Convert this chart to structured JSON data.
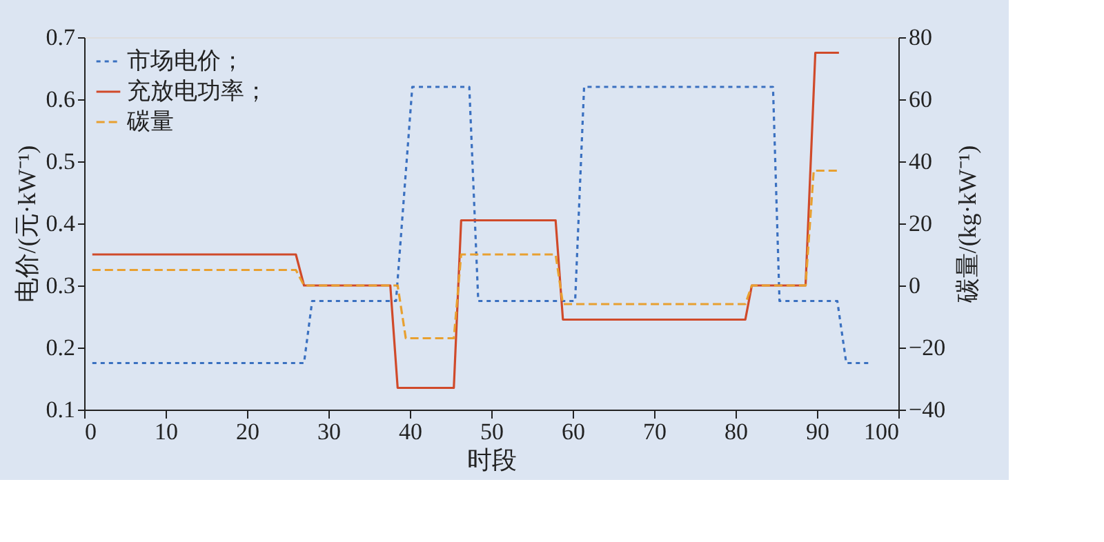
{
  "chart_data": {
    "type": "line",
    "xlabel": "时段",
    "ylabel": "电价/(元·kW⁻¹)",
    "y2label": "碳量/(kg·kW⁻¹)",
    "xlim": [
      0,
      100
    ],
    "xticks": [
      0,
      10,
      20,
      30,
      40,
      50,
      60,
      70,
      80,
      90,
      100
    ],
    "ylim": [
      0.1,
      0.7
    ],
    "yticks": [
      0.1,
      0.2,
      0.3,
      0.4,
      0.5,
      0.6,
      0.7
    ],
    "y2lim": [
      -40,
      80
    ],
    "y2ticks": [
      -40,
      -20,
      0,
      20,
      40,
      60,
      80
    ],
    "grid": false,
    "legend": "top left",
    "marker": "none",
    "series": [
      {
        "name": "市场电价；",
        "color": "#3a70c0",
        "line_style": "dotted",
        "axis": "y",
        "x": [
          1,
          27,
          28,
          38.3,
          40.3,
          47.3,
          48.4,
          60.3,
          61.4,
          84.6,
          85.4,
          92.5,
          93.6,
          96.5
        ],
        "values": [
          0.175,
          0.175,
          0.275,
          0.275,
          0.62,
          0.62,
          0.275,
          0.275,
          0.62,
          0.62,
          0.275,
          0.275,
          0.175,
          0.175
        ]
      },
      {
        "name": "充放电功率；",
        "color": "#d04a2a",
        "line_style": "solid",
        "axis": "y2",
        "x": [
          1,
          26,
          27,
          37.6,
          38.5,
          45.4,
          46.3,
          57.9,
          58.8,
          81.2,
          82,
          88.6,
          89.8,
          92.7
        ],
        "values": [
          10,
          10,
          0,
          0,
          -33,
          -33,
          21,
          21,
          -11,
          -11,
          0,
          0,
          75,
          75
        ]
      },
      {
        "name": "碳量",
        "color": "#e8a030",
        "line_style": "dashed",
        "axis": "y2",
        "x": [
          1,
          26,
          27,
          38.5,
          39.5,
          45.4,
          46.3,
          57.9,
          58.8,
          81.2,
          82,
          88.6,
          89.6,
          92.7
        ],
        "values": [
          5,
          5,
          0,
          0,
          -17,
          -17,
          10,
          10,
          -6,
          -6,
          0,
          0,
          37,
          37
        ]
      }
    ]
  }
}
